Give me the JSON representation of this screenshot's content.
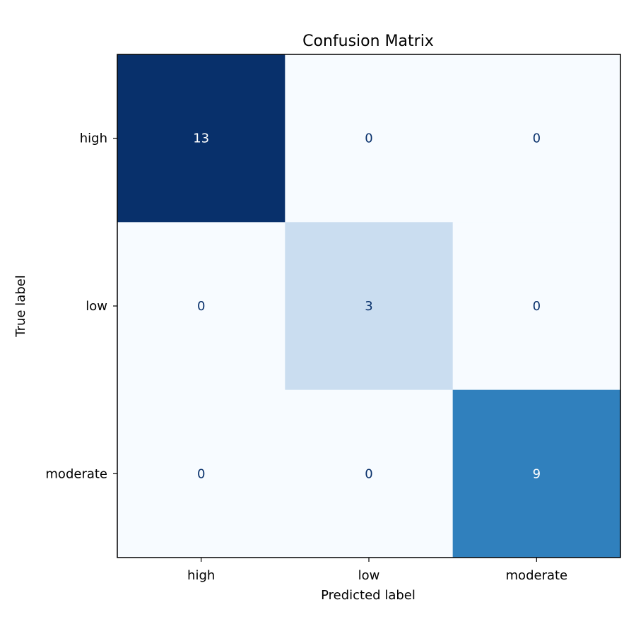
{
  "chart_data": {
    "type": "heatmap",
    "title": "Confusion Matrix",
    "xlabel": "Predicted label",
    "ylabel": "True label",
    "x_categories": [
      "high",
      "low",
      "moderate"
    ],
    "y_categories": [
      "high",
      "low",
      "moderate"
    ],
    "values": [
      [
        13,
        0,
        0
      ],
      [
        0,
        3,
        0
      ],
      [
        0,
        0,
        9
      ]
    ],
    "colormap": "Blues",
    "color_low": "#f7fbff",
    "color_high": "#08306b",
    "text_dark": "#08306b",
    "text_light": "#ffffff",
    "vmin": 0,
    "vmax": 13
  }
}
